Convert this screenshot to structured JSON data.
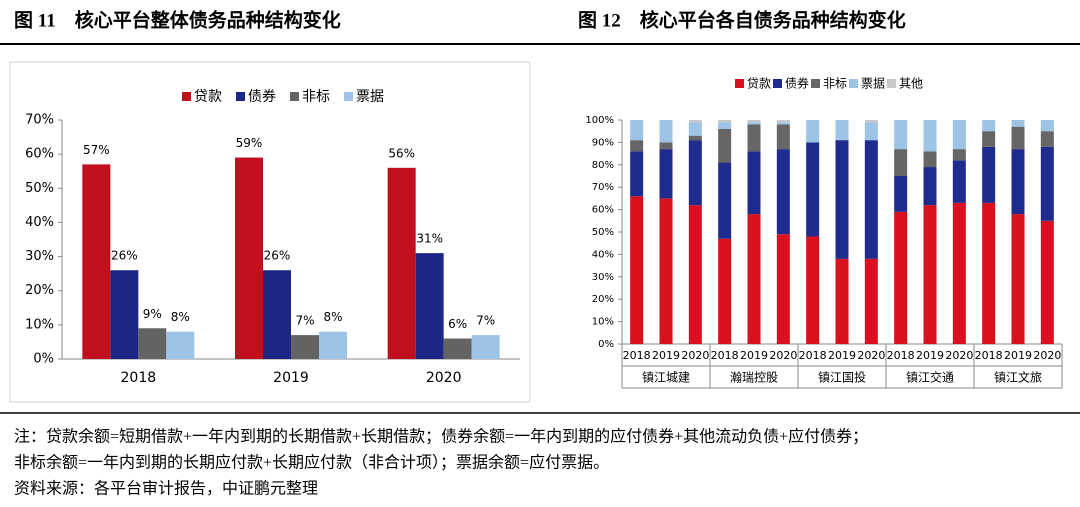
{
  "chart_data": [
    {
      "type": "bar",
      "title": "图 11　核心平台整体债务品种结构变化",
      "categories": [
        "2018",
        "2019",
        "2020"
      ],
      "series": [
        {
          "name": "贷款",
          "color": "#c00f1d",
          "values": [
            57,
            59,
            56
          ],
          "value_labels": [
            "57%",
            "59%",
            "56%"
          ]
        },
        {
          "name": "债券",
          "color": "#1c2785",
          "values": [
            26,
            26,
            31
          ],
          "value_labels": [
            "26%",
            "26%",
            "31%"
          ]
        },
        {
          "name": "非标",
          "color": "#636363",
          "values": [
            9,
            7,
            6
          ],
          "value_labels": [
            "9%",
            "7%",
            "6%"
          ]
        },
        {
          "name": "票据",
          "color": "#9dc3e6",
          "values": [
            8,
            8,
            7
          ],
          "value_labels": [
            "8%",
            "8%",
            "7%"
          ]
        }
      ],
      "ylim": [
        0,
        70
      ],
      "yticks": [
        {
          "value": 0,
          "label": "0%"
        },
        {
          "value": 10,
          "label": "10%"
        },
        {
          "value": 20,
          "label": "20%"
        },
        {
          "value": 30,
          "label": "30%"
        },
        {
          "value": 40,
          "label": "40%"
        },
        {
          "value": 50,
          "label": "50%"
        },
        {
          "value": 60,
          "label": "60%"
        },
        {
          "value": 70,
          "label": "70%"
        }
      ],
      "legend": "top"
    },
    {
      "type": "stacked_bar",
      "title": "图 12　核心平台各自债务品种结构变化",
      "categories": [
        "2018",
        "2019",
        "2020",
        "2018",
        "2019",
        "2020",
        "2018",
        "2019",
        "2020",
        "2018",
        "2019",
        "2020",
        "2018",
        "2019",
        "2020"
      ],
      "groups": [
        "镇江城建",
        "瀚瑞控股",
        "镇江国投",
        "镇江交通",
        "镇江文旅"
      ],
      "series": [
        {
          "name": "贷款",
          "color": "#d9101e",
          "values": [
            66,
            65,
            62,
            47,
            58,
            49,
            48,
            38,
            38,
            59,
            62,
            63,
            63,
            58,
            55
          ]
        },
        {
          "name": "债券",
          "color": "#1f2b8e",
          "values": [
            20,
            22,
            29,
            34,
            28,
            38,
            42,
            53,
            53,
            16,
            17,
            19,
            25,
            29,
            33
          ]
        },
        {
          "name": "非标",
          "color": "#666666",
          "values": [
            5,
            3,
            2,
            15,
            12,
            11,
            0,
            0,
            0,
            12,
            7,
            5,
            7,
            10,
            7
          ]
        },
        {
          "name": "票据",
          "color": "#9dc3e6",
          "values": [
            9,
            10,
            6,
            3,
            1,
            1,
            10,
            9,
            8,
            13,
            14,
            13,
            5,
            3,
            5
          ]
        },
        {
          "name": "其他",
          "color": "#c8c8c8",
          "values": [
            0,
            0,
            1,
            1,
            1,
            1,
            0,
            0,
            1,
            0,
            0,
            0,
            0,
            0,
            0
          ]
        }
      ],
      "ylim": [
        0,
        100
      ],
      "yticks": [
        {
          "value": 0,
          "label": "0%"
        },
        {
          "value": 10,
          "label": "10%"
        },
        {
          "value": 20,
          "label": "20%"
        },
        {
          "value": 30,
          "label": "30%"
        },
        {
          "value": 40,
          "label": "40%"
        },
        {
          "value": 50,
          "label": "50%"
        },
        {
          "value": 60,
          "label": "60%"
        },
        {
          "value": 70,
          "label": "70%"
        },
        {
          "value": 80,
          "label": "80%"
        },
        {
          "value": 90,
          "label": "90%"
        },
        {
          "value": 100,
          "label": "100%"
        }
      ],
      "legend": "top"
    }
  ],
  "notes": [
    "注：贷款余额=短期借款+一年内到期的长期借款+长期借款；债券余额=一年内到期的应付债券+其他流动负债+应付债券；",
    "非标余额=一年内到期的长期应付款+长期应付款（非合计项）；票据余额=应付票据。"
  ],
  "source": "资料来源：各平台审计报告，中证鹏元整理"
}
